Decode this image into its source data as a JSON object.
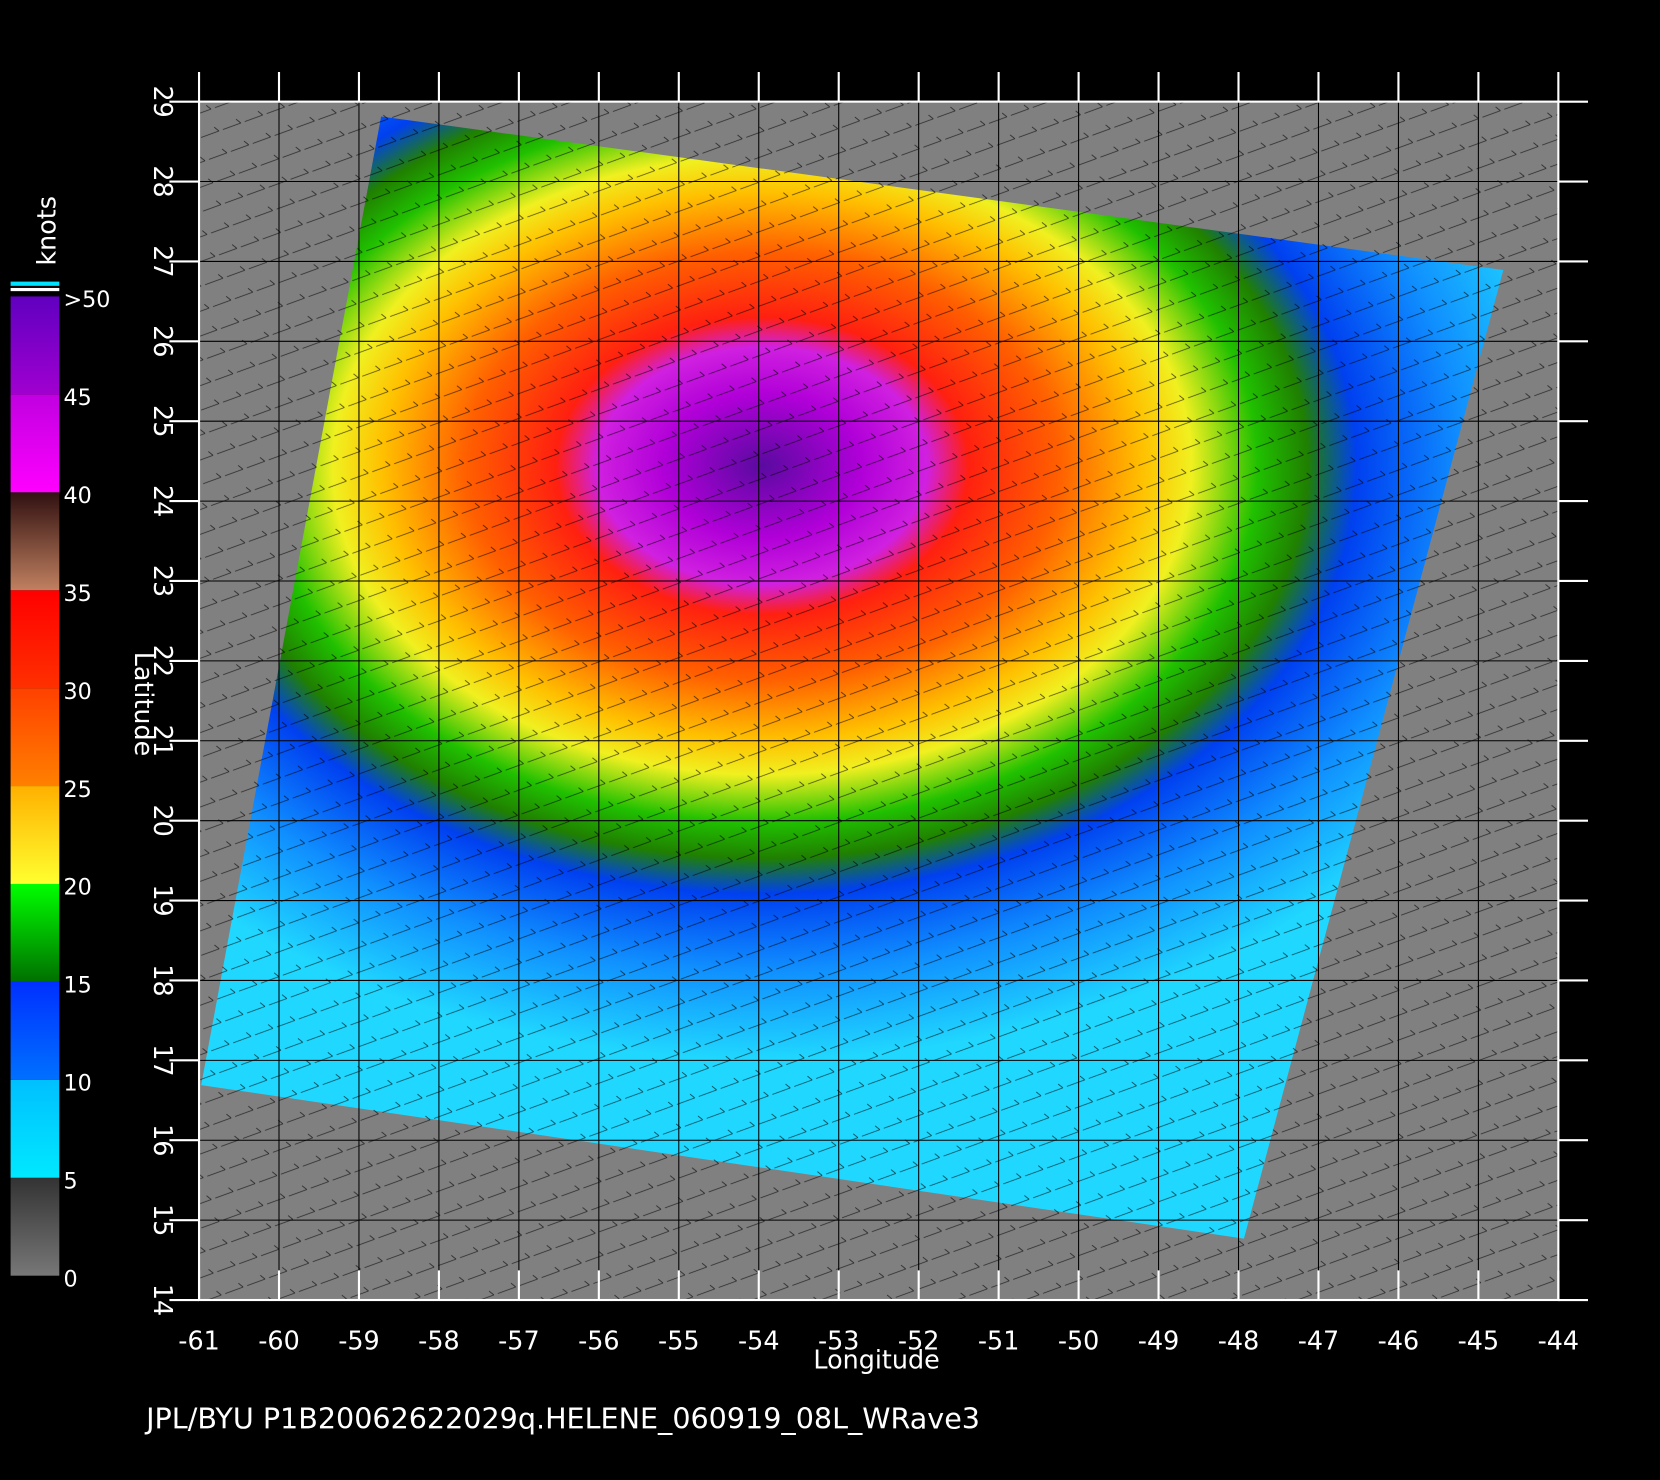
{
  "map_data": {
    "type": "wind-field",
    "x_axis": {
      "label": "Longitude",
      "xlim": [
        -61,
        -44
      ],
      "xticks": [
        -61,
        -60,
        -59,
        -58,
        -57,
        -56,
        -55,
        -54,
        -53,
        -52,
        -51,
        -50,
        -49,
        -48,
        -47,
        -46,
        -45,
        -44
      ]
    },
    "y_axis": {
      "label": "Latitude",
      "ylim": [
        14,
        29
      ],
      "yticks": [
        14,
        15,
        16,
        17,
        18,
        19,
        20,
        21,
        22,
        23,
        24,
        25,
        26,
        27,
        28,
        29
      ]
    },
    "colorbar": {
      "unit": "knots",
      "lim": [
        0,
        50
      ],
      "ticks": [
        0,
        5,
        10,
        15,
        20,
        25,
        30,
        35,
        40,
        45,
        {
          "value": 50,
          "label": ">50"
        }
      ],
      "colors": [
        [
          "#777777",
          "#333333"
        ],
        [
          "#00e8ff",
          "#00c0ff"
        ],
        [
          "#0070ff",
          "#0030ff"
        ],
        [
          "#007000",
          "#00ff00"
        ],
        [
          "#ffff30",
          "#ffb000"
        ],
        [
          "#ff8000",
          "#ff4000"
        ],
        [
          "#ff3000",
          "#ff0000"
        ],
        [
          "#c08060",
          "#301010"
        ],
        [
          "#ff00ff",
          "#c000e0"
        ],
        [
          "#a000d0",
          "#6000c0"
        ]
      ]
    },
    "footer": "JPL/BYU  P1B20062622029q.HELENE_060919_08L_WRave3"
  }
}
